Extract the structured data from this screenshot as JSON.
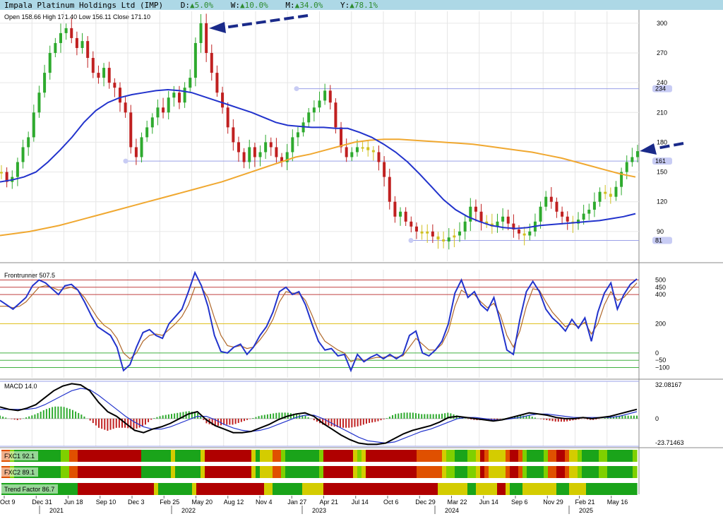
{
  "header": {
    "title": "Impala Platinum Holdings Ltd (IMP)",
    "d_label": "D:",
    "d_value": "▲5.0%",
    "w_label": "W:",
    "w_value": "▲10.0%",
    "m_label": "M:",
    "m_value": "▲34.0%",
    "y_label": "Y:",
    "y_value": "▲78.1%",
    "ohlc": "Open 158.66  High 171.40  Low 156.11  Close 171.10",
    "bg_color": "#add8e6",
    "up_color": "#2e8b2e"
  },
  "chart_data": [
    {
      "type": "candlestick",
      "panel": "price",
      "y_ticks": [
        90,
        120,
        150,
        180,
        210,
        240,
        270,
        300
      ],
      "ylim": [
        60,
        312
      ],
      "price_levels": [
        {
          "label": "234",
          "value": 234
        },
        {
          "label": "161",
          "value": 161
        },
        {
          "label": "81",
          "value": 81
        }
      ],
      "close_series": [
        150,
        140,
        145,
        160,
        175,
        185,
        210,
        230,
        250,
        270,
        280,
        290,
        295,
        285,
        275,
        282,
        265,
        250,
        245,
        255,
        240,
        235,
        220,
        210,
        175,
        165,
        185,
        195,
        205,
        215,
        210,
        225,
        230,
        220,
        235,
        245,
        280,
        300,
        270,
        250,
        230,
        215,
        195,
        180,
        170,
        160,
        175,
        165,
        170,
        180,
        175,
        165,
        160,
        170,
        185,
        190,
        200,
        210,
        215,
        222,
        232,
        220,
        195,
        175,
        165,
        170,
        175,
        175,
        172,
        170,
        160,
        145,
        120,
        105,
        110,
        100,
        95,
        90,
        88,
        90,
        85,
        82,
        80,
        84,
        86,
        90,
        100,
        115,
        110,
        100,
        98,
        95,
        100,
        105,
        98,
        92,
        88,
        86,
        90,
        100,
        115,
        125,
        120,
        110,
        105,
        100,
        98,
        102,
        108,
        112,
        120,
        130,
        128,
        125,
        135,
        150,
        160,
        165,
        171
      ],
      "ma_short": {
        "color": "#2233cc",
        "values": [
          140,
          142,
          145,
          150,
          160,
          172,
          185,
          200,
          212,
          220,
          225,
          228,
          230,
          232,
          233,
          232,
          230,
          226,
          222,
          218,
          214,
          210,
          205,
          200,
          197,
          196,
          195,
          195,
          194,
          194,
          190,
          185,
          178,
          170,
          160,
          148,
          135,
          122,
          112,
          105,
          100,
          96,
          94,
          93,
          94,
          96,
          97,
          98,
          99,
          100,
          101,
          103,
          105,
          108
        ]
      },
      "ma_long": {
        "color": "#f0a830",
        "values": [
          86,
          88,
          90,
          93,
          96,
          100,
          104,
          108,
          112,
          116,
          120,
          124,
          128,
          132,
          136,
          140,
          145,
          150,
          155,
          160,
          165,
          168,
          172,
          176,
          180,
          182,
          183,
          183,
          182,
          181,
          180,
          179,
          178,
          176,
          174,
          172,
          170,
          167,
          164,
          160,
          156,
          152,
          148,
          145
        ]
      },
      "annotations": [
        "arrow pointing to high near 300",
        "arrow pointing to latest candle near 171"
      ]
    },
    {
      "type": "line",
      "panel": "frontrunner",
      "title": "Frontrunner 507.5",
      "y_ticks": [
        500,
        450,
        400,
        200,
        0,
        -50,
        -100
      ],
      "ylim": [
        -170,
        570
      ],
      "guide_levels": [
        {
          "value": 500,
          "color": "#c04040"
        },
        {
          "value": 450,
          "color": "#c04040"
        },
        {
          "value": 400,
          "color": "#c04040"
        },
        {
          "value": 200,
          "color": "#e0c020"
        },
        {
          "value": 0,
          "color": "#40b040"
        },
        {
          "value": -50,
          "color": "#40b040"
        },
        {
          "value": -100,
          "color": "#40b040"
        }
      ],
      "fast": {
        "color": "#2233cc",
        "values": [
          360,
          330,
          300,
          340,
          380,
          460,
          500,
          480,
          440,
          400,
          460,
          470,
          430,
          350,
          260,
          180,
          150,
          120,
          40,
          -120,
          -80,
          40,
          140,
          160,
          120,
          100,
          200,
          250,
          300,
          420,
          550,
          460,
          320,
          120,
          10,
          0,
          40,
          60,
          -10,
          40,
          120,
          180,
          280,
          420,
          450,
          400,
          420,
          330,
          200,
          80,
          20,
          30,
          -20,
          -10,
          -120,
          -10,
          -60,
          -30,
          -10,
          -40,
          -10,
          -40,
          -10,
          120,
          150,
          0,
          -20,
          20,
          80,
          200,
          410,
          500,
          380,
          420,
          330,
          290,
          380,
          210,
          20,
          -10,
          230,
          420,
          490,
          420,
          300,
          240,
          200,
          150,
          230,
          170,
          240,
          80,
          280,
          410,
          480,
          300,
          400,
          470,
          507
        ]
      },
      "slow": {
        "color": "#b0682a",
        "values": [
          320,
          320,
          310,
          320,
          350,
          400,
          450,
          460,
          450,
          430,
          440,
          450,
          430,
          380,
          310,
          240,
          190,
          160,
          100,
          0,
          -40,
          0,
          80,
          120,
          130,
          120,
          160,
          200,
          250,
          330,
          450,
          450,
          380,
          240,
          120,
          50,
          40,
          50,
          30,
          40,
          90,
          150,
          230,
          350,
          420,
          410,
          410,
          360,
          260,
          150,
          80,
          50,
          20,
          0,
          -60,
          -40,
          -50,
          -40,
          -30,
          -30,
          -20,
          -30,
          -20,
          40,
          100,
          60,
          20,
          20,
          60,
          150,
          320,
          430,
          400,
          400,
          350,
          310,
          340,
          260,
          120,
          40,
          150,
          320,
          440,
          430,
          350,
          280,
          230,
          180,
          200,
          180,
          210,
          130,
          200,
          330,
          420,
          360,
          380,
          430,
          480
        ]
      }
    },
    {
      "type": "bar+line",
      "panel": "macd",
      "title": "MACD 14.0",
      "y_ticks": [
        32.08167,
        0,
        -23.71463
      ],
      "tick_labels": [
        "32.08167",
        "0",
        "-23.71463"
      ],
      "ylim": [
        -23.71463,
        32.08167
      ],
      "macd_line": {
        "color": "#000000",
        "values": [
          10,
          8,
          7,
          9,
          12,
          18,
          24,
          28,
          30,
          29,
          24,
          14,
          6,
          2,
          -4,
          -10,
          -12,
          -9,
          -7,
          -4,
          0,
          4,
          6,
          -1,
          -6,
          -9,
          -12,
          -12,
          -11,
          -8,
          -5,
          -1,
          2,
          4,
          5,
          2,
          -4,
          -9,
          -14,
          -18,
          -21,
          -22,
          -22,
          -21,
          -17,
          -13,
          -10,
          -8,
          -6,
          -3,
          1,
          2,
          1,
          0,
          -1,
          -2,
          -1,
          1,
          3,
          5,
          4,
          3,
          1,
          0,
          0,
          1,
          0,
          1,
          2,
          4,
          6,
          8
        ]
      },
      "signal_line": {
        "color": "#2233cc",
        "values": [
          8,
          8,
          8,
          8,
          9,
          12,
          16,
          20,
          24,
          26,
          25,
          20,
          14,
          8,
          2,
          -3,
          -7,
          -9,
          -9,
          -7,
          -4,
          -1,
          2,
          2,
          -1,
          -5,
          -8,
          -10,
          -11,
          -10,
          -8,
          -5,
          -2,
          1,
          3,
          3,
          0,
          -4,
          -8,
          -12,
          -16,
          -19,
          -20,
          -21,
          -20,
          -17,
          -14,
          -11,
          -9,
          -6,
          -3,
          0,
          1,
          1,
          0,
          -1,
          -1,
          0,
          1,
          3,
          4,
          4,
          3,
          2,
          1,
          1,
          1,
          1,
          1,
          2,
          4,
          6
        ]
      },
      "up_color": "#2eaa2e",
      "down_color": "#c02020"
    },
    {
      "type": "heatmap",
      "panel": "bands",
      "rows": [
        {
          "label": "FXC1 92.1"
        },
        {
          "label": "FXC2 89.1"
        },
        {
          "label": "Trend Factor 86.7"
        }
      ],
      "colors": {
        "green": "#1aa41a",
        "yellow": "#d4cc00",
        "red": "#b00000",
        "lime": "#7fd000",
        "orange": "#e05000"
      }
    }
  ],
  "x_axis": {
    "month_labels": [
      "Oct 9",
      "Dec 31",
      "Jun 18",
      "Sep 10",
      "Dec 3",
      "Feb 25",
      "May 20",
      "Aug 12",
      "Nov 4",
      "Jan 27",
      "Apr 21",
      "Jul 14",
      "Oct 6",
      "Dec 29",
      "Mar 22",
      "Jun 14",
      "Sep 6",
      "Nov 29",
      "Feb 21",
      "May 16"
    ],
    "year_labels": [
      "2021",
      "2022",
      "2023",
      "2024",
      "2025"
    ]
  }
}
